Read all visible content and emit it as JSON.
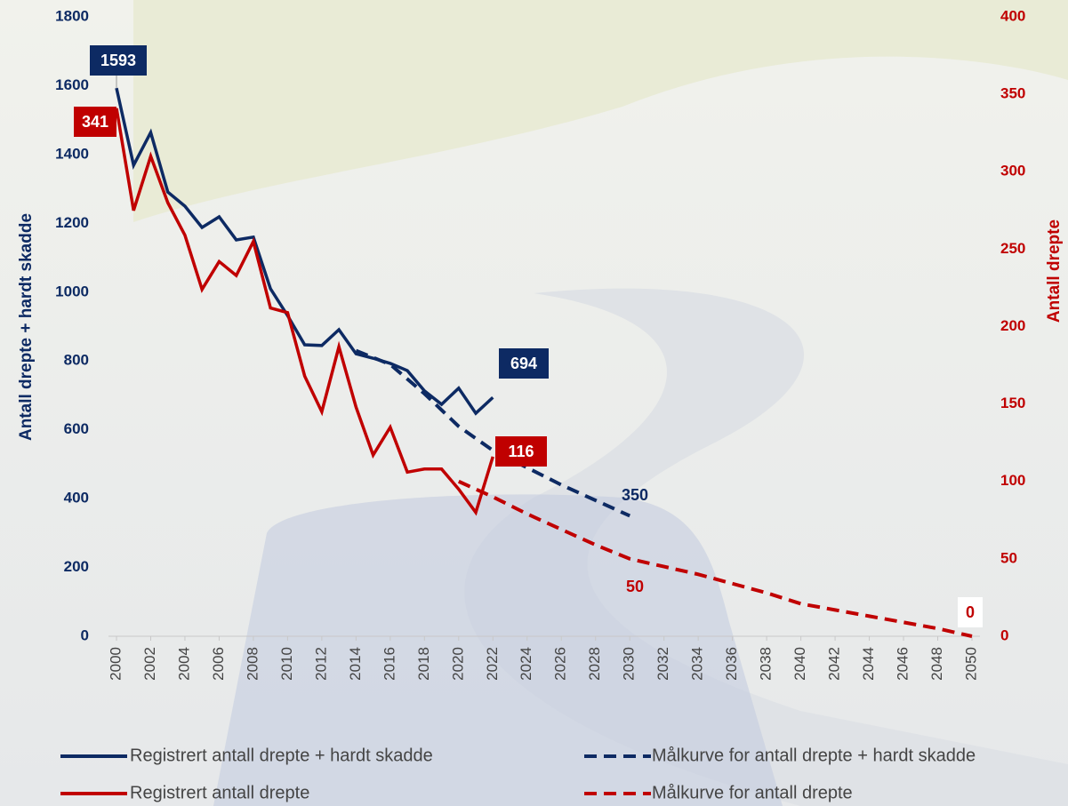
{
  "chart_data": {
    "type": "line",
    "y_label": "Antall drepte + hardt skadde",
    "y2_label": "Antall drepte",
    "xlim": [
      2000,
      2050
    ],
    "xticks": [
      2000,
      2002,
      2004,
      2006,
      2008,
      2010,
      2012,
      2014,
      2016,
      2018,
      2020,
      2022,
      2024,
      2026,
      2028,
      2030,
      2032,
      2034,
      2036,
      2038,
      2040,
      2042,
      2044,
      2046,
      2048,
      2050
    ],
    "ylim": [
      0,
      1800
    ],
    "yticks": [
      0,
      200,
      400,
      600,
      800,
      1000,
      1200,
      1400,
      1600,
      1800
    ],
    "y2lim": [
      0,
      400
    ],
    "y2ticks": [
      0,
      50,
      100,
      150,
      200,
      250,
      300,
      350,
      400
    ],
    "series": [
      {
        "name": "Registrert antall drepte + hardt skadde",
        "color": "#0d2a63",
        "style": "solid",
        "x": [
          2000,
          2001,
          2002,
          2003,
          2004,
          2005,
          2006,
          2007,
          2008,
          2009,
          2010,
          2011,
          2012,
          2013,
          2014,
          2015,
          2016,
          2017,
          2018,
          2019,
          2020,
          2021,
          2022
        ],
        "values": [
          1593,
          1369,
          1464,
          1291,
          1250,
          1188,
          1219,
          1152,
          1160,
          1010,
          932,
          847,
          845,
          891,
          821,
          808,
          793,
          772,
          713,
          674,
          721,
          648,
          694
        ]
      },
      {
        "name": "Målkurve for antall drepte + hardt skadde",
        "color": "#0d2a63",
        "style": "dashed",
        "x": [
          2014,
          2016,
          2018,
          2020,
          2022,
          2024,
          2026,
          2028,
          2030
        ],
        "values": [
          830,
          790,
          705,
          610,
          540,
          490,
          440,
          395,
          350
        ]
      },
      {
        "name": "Registrert antall drepte",
        "color": "#c00000",
        "style": "solid",
        "axis": "y2",
        "x": [
          2000,
          2001,
          2002,
          2003,
          2004,
          2005,
          2006,
          2007,
          2008,
          2009,
          2010,
          2011,
          2012,
          2013,
          2014,
          2015,
          2016,
          2017,
          2018,
          2019,
          2020,
          2021,
          2022
        ],
        "values": [
          341,
          275,
          310,
          280,
          259,
          224,
          242,
          233,
          255,
          212,
          209,
          168,
          145,
          187,
          148,
          117,
          135,
          106,
          108,
          108,
          95,
          80,
          116
        ]
      },
      {
        "name": "Målkurve for antall drepte",
        "color": "#c00000",
        "style": "dashed",
        "axis": "y2",
        "x": [
          2020,
          2022,
          2024,
          2026,
          2028,
          2030,
          2032,
          2034,
          2036,
          2038,
          2040,
          2042,
          2044,
          2046,
          2048,
          2050
        ],
        "values": [
          100,
          90,
          79,
          69,
          59,
          50,
          45,
          40,
          34,
          28,
          21,
          17,
          13,
          9,
          5,
          0
        ]
      }
    ]
  }
}
